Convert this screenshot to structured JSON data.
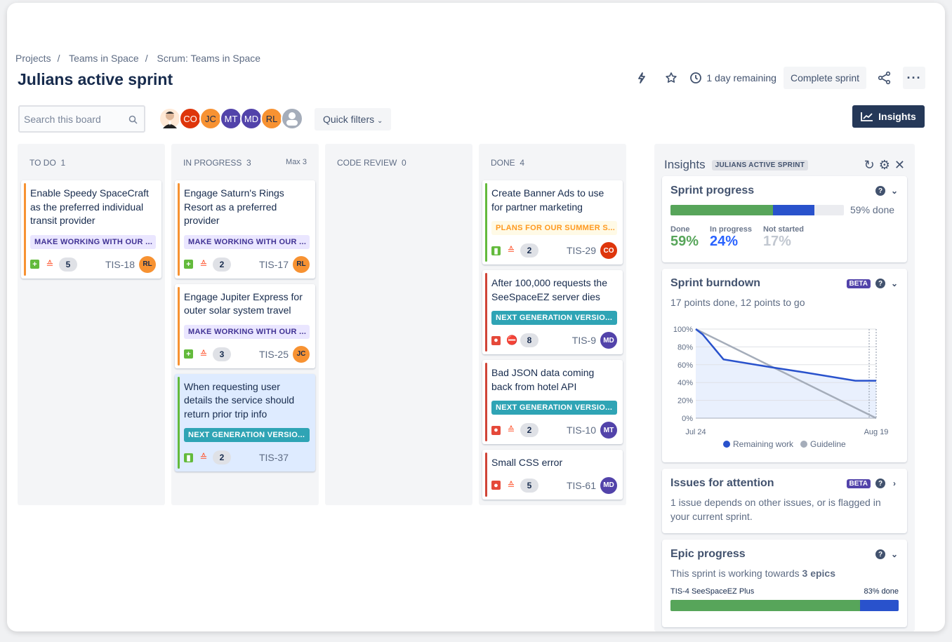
{
  "breadcrumbs": [
    "Projects",
    "Teams in Space",
    "Scrum: Teams in Space"
  ],
  "page_title": "Julians active sprint",
  "header": {
    "time_remaining": "1 day remaining",
    "complete_sprint": "Complete sprint",
    "icons": [
      "lightning-icon",
      "star-icon",
      "clock-icon",
      "share-icon",
      "more-icon"
    ]
  },
  "search": {
    "placeholder": "Search this board"
  },
  "avatars": [
    {
      "initials": "CO",
      "color": "#de350b"
    },
    {
      "initials": "JC",
      "color": "#f79232"
    },
    {
      "initials": "MT",
      "color": "#5243aa"
    },
    {
      "initials": "MD",
      "color": "#5243aa"
    },
    {
      "initials": "RL",
      "color": "#f79232"
    }
  ],
  "quick_filters": "Quick filters",
  "insights_button": "Insights",
  "columns": [
    {
      "name": "To Do",
      "count": "1",
      "max": ""
    },
    {
      "name": "In Progress",
      "count": "3",
      "max": "Max 3"
    },
    {
      "name": "Code Review",
      "count": "0",
      "max": ""
    },
    {
      "name": "Done",
      "count": "4",
      "max": ""
    }
  ],
  "cards": {
    "todo": [
      {
        "summary": "Enable Speedy SpaceCraft as the preferred individual transit provider",
        "epic": "MAKE WORKING WITH OUR ...",
        "estimate": "5",
        "key": "TIS-18",
        "assignee": "RL"
      }
    ],
    "inprogress": [
      {
        "summary": "Engage Saturn's Rings Resort as a preferred provider",
        "epic": "MAKE WORKING WITH OUR ...",
        "estimate": "2",
        "key": "TIS-17",
        "assignee": "RL"
      },
      {
        "summary": "Engage Jupiter Express for outer solar system travel",
        "epic": "MAKE WORKING WITH OUR ...",
        "estimate": "3",
        "key": "TIS-25",
        "assignee": "JC"
      },
      {
        "summary": "When requesting user details the service should return prior trip info",
        "epic": "NEXT GENERATION VERSIO...",
        "estimate": "2",
        "key": "TIS-37",
        "assignee": ""
      }
    ],
    "done": [
      {
        "summary": "Create Banner Ads to use for partner marketing",
        "epic": "PLANS FOR OUR SUMMER S...",
        "estimate": "2",
        "key": "TIS-29",
        "assignee": "CO"
      },
      {
        "summary": "After 100,000 requests the SeeSpaceEZ server dies",
        "epic": "NEXT GENERATION VERSIO...",
        "estimate": "8",
        "key": "TIS-9",
        "assignee": "MD"
      },
      {
        "summary": "Bad JSON data coming back from hotel API",
        "epic": "NEXT GENERATION VERSIO...",
        "estimate": "2",
        "key": "TIS-10",
        "assignee": "MT"
      },
      {
        "summary": "Small CSS error",
        "epic": "",
        "estimate": "5",
        "key": "TIS-61",
        "assignee": "MD"
      }
    ]
  },
  "insights": {
    "title": "Insights",
    "sprint_badge": "JULIANS ACTIVE SPRINT",
    "sprint_progress": {
      "title": "Sprint progress",
      "done_label": "59% done",
      "done": "59%",
      "in_progress": "24%",
      "not_started": "17%",
      "done_text": "Done",
      "in_progress_text": "In progress",
      "not_started_text": "Not started",
      "fractions": [
        0.59,
        0.24,
        0.17
      ]
    },
    "burndown": {
      "title": "Sprint burndown",
      "badge": "BETA",
      "summary": "17 points done, 12 points to go"
    },
    "attention": {
      "title": "Issues for attention",
      "badge": "BETA",
      "text": "1 issue depends on other issues, or is flagged in your current sprint."
    },
    "epic": {
      "title": "Epic progress",
      "text": "This sprint is working towards ",
      "bold": "3 epics",
      "items": [
        {
          "name": "TIS-4 SeeSpaceEZ Plus",
          "done": "83% done",
          "fractions": [
            0.83,
            0.17
          ]
        }
      ]
    }
  },
  "chart_data": {
    "type": "line",
    "x_ticks": [
      "Jul 24",
      "Aug 19"
    ],
    "y_ticks": [
      "0%",
      "20%",
      "40%",
      "60%",
      "80%",
      "100%"
    ],
    "ylim": [
      0,
      100
    ],
    "legend": "bottom",
    "series": [
      {
        "name": "Remaining work",
        "color": "#2952cc",
        "points": [
          [
            "Jul 24",
            100
          ],
          [
            "Jul 25",
            94
          ],
          [
            "Jul 28",
            66
          ],
          [
            "Aug 4",
            57
          ],
          [
            "Aug 9",
            51
          ],
          [
            "Aug 16",
            42
          ],
          [
            "Aug 19",
            42
          ]
        ]
      },
      {
        "name": "Guideline",
        "color": "#a5adba",
        "points": [
          [
            "Jul 24",
            100
          ],
          [
            "Aug 19",
            0
          ]
        ]
      }
    ]
  }
}
